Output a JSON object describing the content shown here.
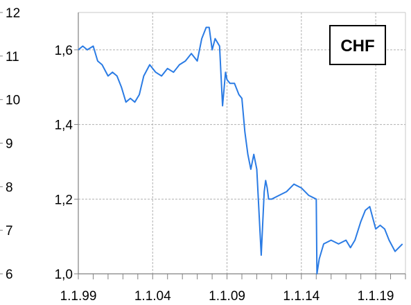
{
  "chart_data": {
    "type": "line",
    "label_box": "CHF",
    "line_color": "#2a7be4",
    "grid": true,
    "x_ticks": [
      "1.1.99",
      "1.1.04",
      "1.1.09",
      "1.1.14",
      "1.1.19"
    ],
    "y_ticks_inner": [
      "1,0",
      "1,2",
      "1,4",
      "1,6"
    ],
    "y_ticks_outer": [
      "6",
      "7",
      "8",
      "9",
      "10",
      "11",
      "12"
    ],
    "x_range": [
      1999.0,
      2021.0
    ],
    "y_range": [
      1.0,
      1.7
    ],
    "series": [
      {
        "x": [
          1999.0,
          1999.3,
          1999.6,
          2000.0,
          2000.3,
          2000.6,
          2001.0,
          2001.3,
          2001.6,
          2001.9,
          2002.2,
          2002.5,
          2002.8,
          2003.1,
          2003.4,
          2003.8,
          2004.2,
          2004.6,
          2005.0,
          2005.4,
          2005.8,
          2006.2,
          2006.6,
          2007.0,
          2007.3,
          2007.6,
          2007.8,
          2008.0,
          2008.2,
          2008.5,
          2008.7,
          2008.9,
          2009.0,
          2009.2,
          2009.5,
          2009.8,
          2010.0,
          2010.2,
          2010.4,
          2010.6,
          2010.8,
          2011.0,
          2011.3,
          2011.5,
          2011.6,
          2011.7,
          2011.8,
          2012.0,
          2012.5,
          2013.0,
          2013.5,
          2014.0,
          2014.5,
          2015.0,
          2015.05,
          2015.2,
          2015.5,
          2016.0,
          2016.5,
          2017.0,
          2017.3,
          2017.6,
          2018.0,
          2018.3,
          2018.6,
          2019.0,
          2019.3,
          2019.6,
          2019.9,
          2020.3,
          2020.8
        ],
        "y": [
          1.6,
          1.61,
          1.6,
          1.61,
          1.57,
          1.56,
          1.53,
          1.54,
          1.53,
          1.5,
          1.46,
          1.47,
          1.46,
          1.48,
          1.53,
          1.56,
          1.54,
          1.53,
          1.55,
          1.54,
          1.56,
          1.57,
          1.59,
          1.57,
          1.63,
          1.66,
          1.66,
          1.6,
          1.63,
          1.61,
          1.45,
          1.54,
          1.52,
          1.51,
          1.51,
          1.48,
          1.47,
          1.38,
          1.32,
          1.28,
          1.32,
          1.28,
          1.05,
          1.22,
          1.25,
          1.23,
          1.2,
          1.2,
          1.21,
          1.22,
          1.24,
          1.23,
          1.21,
          1.2,
          1.0,
          1.04,
          1.08,
          1.09,
          1.08,
          1.09,
          1.07,
          1.09,
          1.14,
          1.17,
          1.18,
          1.12,
          1.13,
          1.12,
          1.09,
          1.06,
          1.08
        ]
      }
    ]
  }
}
